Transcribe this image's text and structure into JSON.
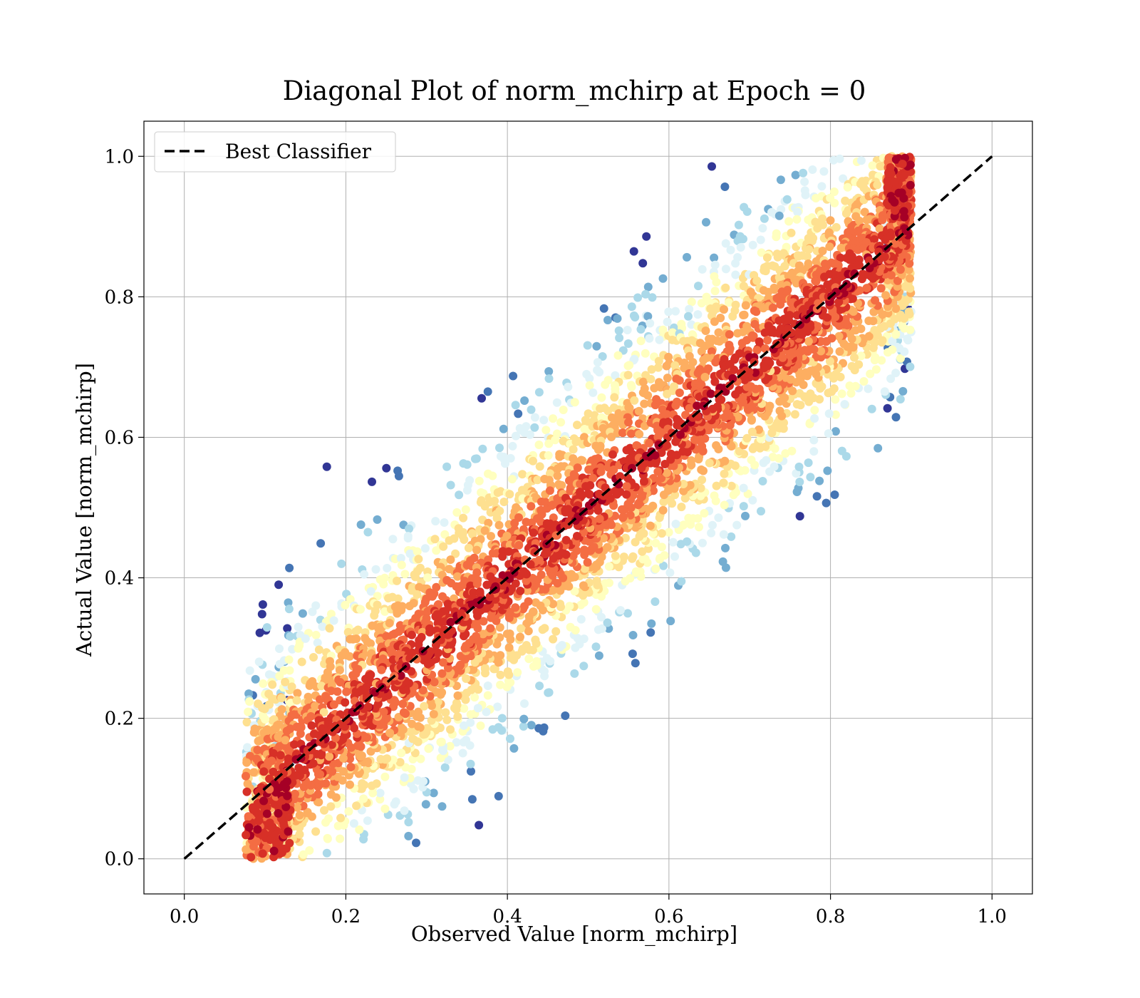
{
  "chart_data": {
    "type": "scatter",
    "title": "Diagonal Plot of norm_mchirp at Epoch = 0",
    "xlabel": "Observed Value [norm_mchirp]",
    "ylabel": "Actual Value [norm_mchirp]",
    "xlim": [
      -0.05,
      1.05
    ],
    "ylim": [
      -0.05,
      1.05
    ],
    "xticks": [
      0.0,
      0.2,
      0.4,
      0.6,
      0.8,
      1.0
    ],
    "yticks": [
      0.0,
      0.2,
      0.4,
      0.6,
      0.8,
      1.0
    ],
    "xtick_labels": [
      "0.0",
      "0.2",
      "0.4",
      "0.6",
      "0.8",
      "1.0"
    ],
    "ytick_labels": [
      "0.0",
      "0.2",
      "0.4",
      "0.6",
      "0.8",
      "1.0"
    ],
    "grid": true,
    "legend": {
      "placement": "upper-left",
      "entries": [
        {
          "label": "Best Classifier",
          "style": "dashed",
          "color": "#000000"
        }
      ]
    },
    "reference_line": {
      "label": "Best Classifier",
      "x": [
        0.0,
        1.0
      ],
      "y": [
        0.0,
        1.0
      ],
      "style": "dashed",
      "color": "#000000"
    },
    "colormap": "RdYlBu_r",
    "colormap_colors": [
      "#313695",
      "#4575b4",
      "#74add1",
      "#abd9e9",
      "#e0f3f8",
      "#ffffbf",
      "#fee090",
      "#fdae61",
      "#f46d43",
      "#d73027",
      "#a50026"
    ],
    "scatter_distribution": {
      "description_x_range": [
        0.05,
        0.9
      ],
      "description_y_range": [
        0.0,
        1.0
      ],
      "core_color": "#a50026",
      "outlier_color": "#313695"
    }
  }
}
